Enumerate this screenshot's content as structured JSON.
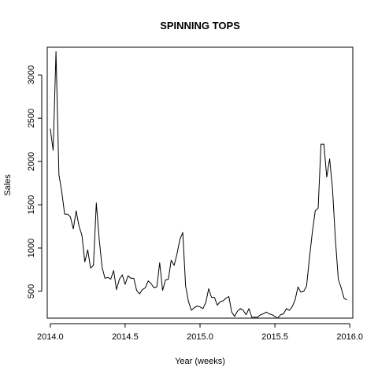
{
  "chart_data": {
    "type": "line",
    "title": "SPINNING TOPS",
    "xlabel": "Year (weeks)",
    "ylabel": "Sales",
    "xlim": [
      2013.98,
      2016.02
    ],
    "ylim": [
      190,
      3320
    ],
    "xticks": [
      2014.0,
      2014.5,
      2015.0,
      2015.5,
      2016.0
    ],
    "xtick_labels": [
      "2014.0",
      "2014.5",
      "2015.0",
      "2015.5",
      "2016.0"
    ],
    "yticks": [
      500,
      1000,
      1500,
      2000,
      2500,
      3000
    ],
    "ytick_labels": [
      "500",
      "1000",
      "1500",
      "2000",
      "2500",
      "3000"
    ],
    "grid": false,
    "series": [
      {
        "color": "#000000",
        "x": [
          2014.0,
          2014.0192,
          2014.0385,
          2014.0577,
          2014.0769,
          2014.0962,
          2014.1154,
          2014.1346,
          2014.1538,
          2014.1731,
          2014.1923,
          2014.2115,
          2014.2308,
          2014.25,
          2014.2692,
          2014.2885,
          2014.3077,
          2014.3269,
          2014.3462,
          2014.3654,
          2014.3846,
          2014.4038,
          2014.4231,
          2014.4423,
          2014.4615,
          2014.4808,
          2014.5,
          2014.5192,
          2014.5385,
          2014.5577,
          2014.5769,
          2014.5962,
          2014.6154,
          2014.6346,
          2014.6538,
          2014.6731,
          2014.6923,
          2014.7115,
          2014.7308,
          2014.75,
          2014.7692,
          2014.7885,
          2014.8077,
          2014.8269,
          2014.8462,
          2014.8654,
          2014.8846,
          2014.9038,
          2014.9231,
          2014.9423,
          2014.9615,
          2014.9808,
          2015.0,
          2015.0192,
          2015.0385,
          2015.0577,
          2015.0769,
          2015.0962,
          2015.1154,
          2015.1346,
          2015.1538,
          2015.1731,
          2015.1923,
          2015.2115,
          2015.2308,
          2015.25,
          2015.2692,
          2015.2885,
          2015.3077,
          2015.3269,
          2015.3462,
          2015.3654,
          2015.3846,
          2015.4038,
          2015.4231,
          2015.4423,
          2015.4615,
          2015.4808,
          2015.5,
          2015.5192,
          2015.5385,
          2015.5577,
          2015.5769,
          2015.5962,
          2015.6154,
          2015.6346,
          2015.6538,
          2015.6731,
          2015.6923,
          2015.7115,
          2015.7308,
          2015.75,
          2015.7692,
          2015.7885,
          2015.8077,
          2015.8269,
          2015.8462,
          2015.8654,
          2015.8846,
          2015.9038,
          2015.9231,
          2015.9423,
          2015.9615,
          2015.9808
        ],
        "values": [
          2380,
          2130,
          3270,
          1850,
          1650,
          1390,
          1390,
          1360,
          1220,
          1430,
          1250,
          1150,
          840,
          980,
          770,
          800,
          1520,
          1100,
          780,
          650,
          660,
          640,
          740,
          520,
          640,
          690,
          580,
          680,
          650,
          650,
          510,
          470,
          520,
          540,
          620,
          590,
          540,
          550,
          830,
          510,
          630,
          640,
          860,
          800,
          930,
          1100,
          1180,
          560,
          380,
          280,
          310,
          330,
          320,
          300,
          370,
          530,
          430,
          430,
          340,
          380,
          390,
          420,
          440,
          260,
          210,
          270,
          300,
          280,
          230,
          300,
          200,
          200,
          200,
          230,
          240,
          260,
          240,
          230,
          210,
          190,
          230,
          240,
          300,
          280,
          320,
          400,
          550,
          490,
          500,
          560,
          890,
          1180,
          1430,
          1460,
          2200,
          2200,
          1820,
          2030,
          1690,
          1100,
          640,
          540,
          420,
          400
        ]
      }
    ]
  }
}
